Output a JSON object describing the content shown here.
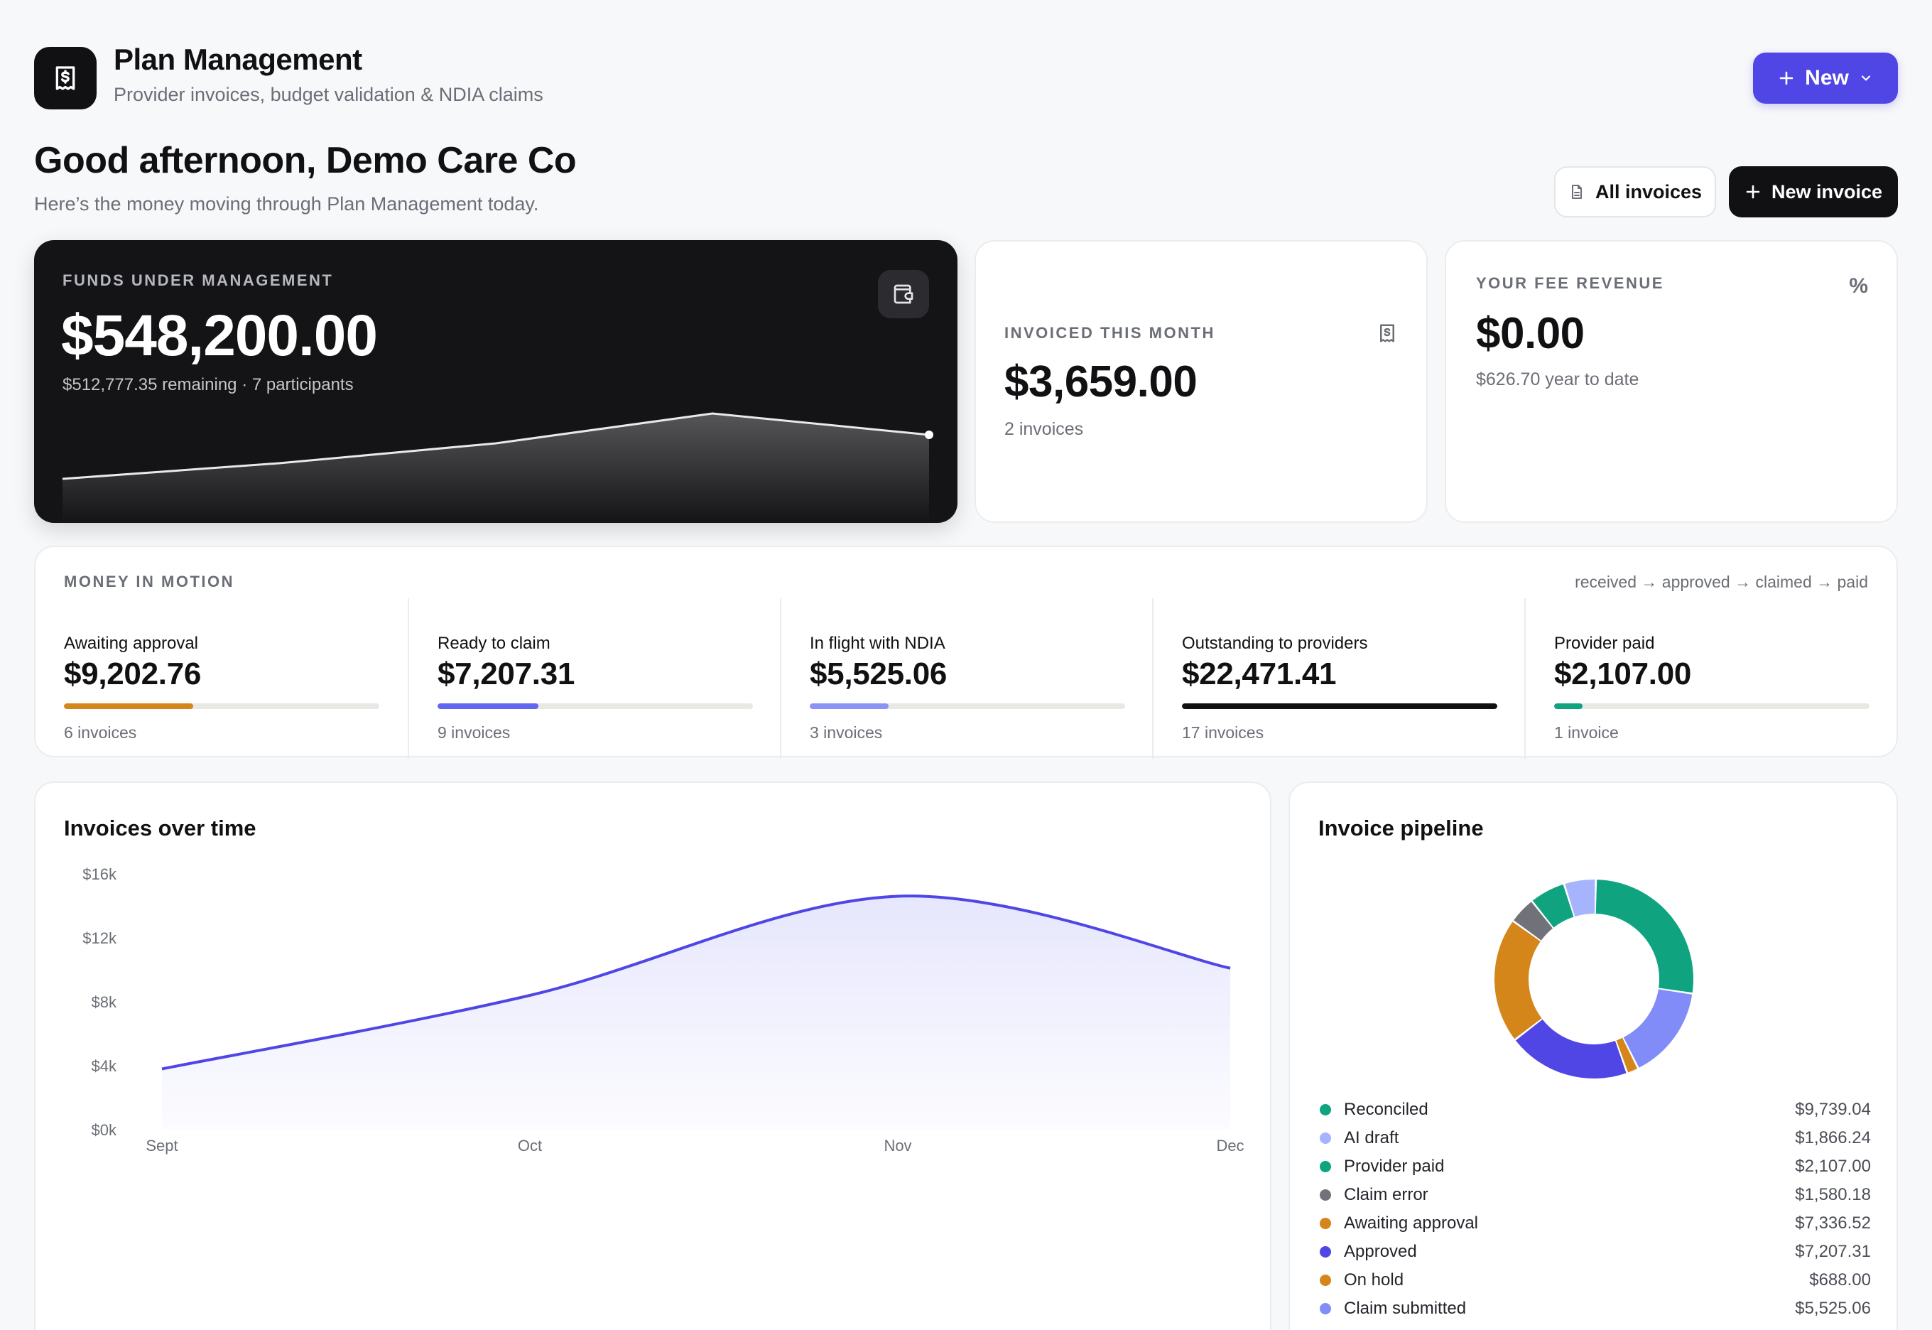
{
  "app": {
    "title": "Plan Management",
    "subtitle": "Provider invoices, budget validation & NDIA claims",
    "new_label": "New"
  },
  "greeting": {
    "title": "Good afternoon, Demo Care Co",
    "subtitle": "Here’s the money moving through Plan Management today."
  },
  "actions": {
    "all_invoices": "All invoices",
    "new_invoice": "New invoice"
  },
  "funds": {
    "label": "Funds under management",
    "value": "$548,200.00",
    "sub": "$512,777.35 remaining · 7 participants",
    "trend": [
      0.12,
      0.23,
      0.37,
      0.58,
      0.43
    ]
  },
  "invoiced": {
    "label": "Invoiced this month",
    "value": "$3,659.00",
    "sub": "2 invoices"
  },
  "fee": {
    "label": "Your fee revenue",
    "value": "$0.00",
    "sub": "$626.70 year to date",
    "icon_text": "%"
  },
  "motion": {
    "label": "Money in motion",
    "flow": "received → approved → claimed → paid",
    "stages": [
      {
        "title": "Awaiting approval",
        "value": "$9,202.76",
        "count": "6 invoices",
        "progress": 0.41,
        "color": "#d4861a"
      },
      {
        "title": "Ready to claim",
        "value": "$7,207.31",
        "count": "9 invoices",
        "progress": 0.32,
        "color": "#6366f1"
      },
      {
        "title": "In flight with NDIA",
        "value": "$5,525.06",
        "count": "3 invoices",
        "progress": 0.25,
        "color": "#8b93f4"
      },
      {
        "title": "Outstanding to providers",
        "value": "$22,471.41",
        "count": "17 invoices",
        "progress": 1.0,
        "color": "#111114"
      },
      {
        "title": "Provider paid",
        "value": "$2,107.00",
        "count": "1 invoice",
        "progress": 0.09,
        "color": "#10a37f"
      }
    ]
  },
  "chart_data": {
    "type": "area",
    "title": "Invoices over time",
    "categories": [
      "Sept",
      "Oct",
      "Nov",
      "Dec"
    ],
    "series": [
      {
        "values": [
          3800,
          8400,
          14600,
          10100
        ]
      }
    ],
    "yticks": [
      "$16k",
      "$12k",
      "$8k",
      "$4k",
      "$0k"
    ],
    "ylim": [
      0,
      16000
    ],
    "color": "#4f46e5"
  },
  "pipeline": {
    "title": "Invoice pipeline",
    "items": [
      {
        "name": "Reconciled",
        "value": "$9,739.04",
        "amount": 9739.04,
        "color": "#10a37f"
      },
      {
        "name": "AI draft",
        "value": "$1,866.24",
        "amount": 1866.24,
        "color": "#a5b4fc"
      },
      {
        "name": "Provider paid",
        "value": "$2,107.00",
        "amount": 2107.0,
        "color": "#10a37f"
      },
      {
        "name": "Claim error",
        "value": "$1,580.18",
        "amount": 1580.18,
        "color": "#71717a"
      },
      {
        "name": "Awaiting approval",
        "value": "$7,336.52",
        "amount": 7336.52,
        "color": "#d4861a"
      },
      {
        "name": "Approved",
        "value": "$7,207.31",
        "amount": 7207.31,
        "color": "#4f46e5"
      },
      {
        "name": "On hold",
        "value": "$688.00",
        "amount": 688.0,
        "color": "#d4861a"
      },
      {
        "name": "Claim submitted",
        "value": "$5,525.06",
        "amount": 5525.06,
        "color": "#818cf8"
      }
    ],
    "donut_order": [
      "Reconciled",
      "Claim submitted",
      "On hold",
      "Approved",
      "Awaiting approval",
      "Claim error",
      "Provider paid",
      "AI draft"
    ]
  }
}
